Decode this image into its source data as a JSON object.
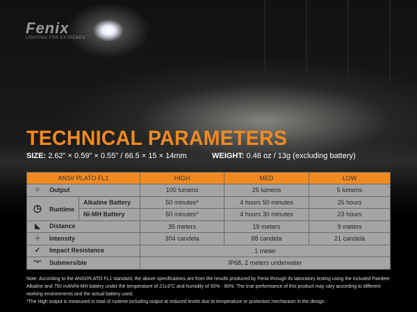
{
  "logo": {
    "brand": "Fenix",
    "tagline": "LIGHTING FOR EXTREMES"
  },
  "title": "TECHNICAL PARAMETERS",
  "size": {
    "label": "SIZE:",
    "value": "2.62\" × 0.59\" × 0.55\" / 66.5 × 15 × 14mm"
  },
  "weight": {
    "label": "WEIGHT:",
    "value": "0.46 oz / 13g (excluding battery)"
  },
  "colors": {
    "accent": "#f18a21",
    "table_bg": "#a4a4a4"
  },
  "table": {
    "headers": [
      "ANSI/ PLATO  FL1",
      "HIGH",
      "MED",
      "LOW"
    ],
    "output": {
      "icon": "light-rays-icon",
      "label": "Output",
      "values": [
        "100 lumens",
        "25 lumens",
        "5 lumens"
      ]
    },
    "runtime": {
      "icon": "clock-icon",
      "label": "Runtime",
      "alkaline": {
        "label": "Alkaline Battery",
        "values": [
          "50 minutes*",
          "4 hours 50 minutes",
          "25 hours"
        ]
      },
      "nimh": {
        "label": "Ni-MH Battery",
        "values": [
          "50 minutes*",
          "4 hours 30 minutes",
          "23 hours"
        ]
      }
    },
    "distance": {
      "icon": "beam-distance-icon",
      "label": "Distance",
      "values": [
        "35 meters",
        "19 meters",
        "9 meters"
      ]
    },
    "intensity": {
      "icon": "target-icon",
      "label": "Intensity",
      "values": [
        "304 candela",
        "88 candela",
        "21 candela"
      ]
    },
    "impact": {
      "icon": "check-icon",
      "label": "Impact Resistance",
      "value": "1 meter"
    },
    "submersible": {
      "icon": "water-splash-icon",
      "label": "Submersible",
      "value": "IP68, 2 meters underwater"
    }
  },
  "notes": {
    "note": "Note: According to the ANSI/PLATO FL1 standard, the above specifications are from the results produced by Fenix through its laboratory testing using the included Pairdeer Alkaline and 750 mAh/Ni-MH battery under the temperature of 21±3°C and humidity of 50% - 80%. The true performance of this product may vary according to different working environments and the actual battery used.",
    "footnote": "*The High output is measured in total of runtime including output at reduced levels due to temperature or protection mechanism in the design."
  }
}
